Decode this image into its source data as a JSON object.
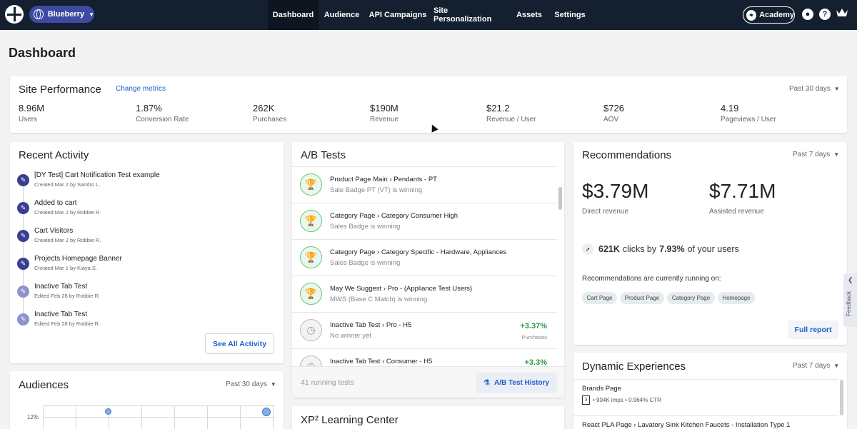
{
  "nav": {
    "site": "Blueberry",
    "tabs": [
      "Dashboard",
      "Audience",
      "API Campaigns",
      "Site Personalization",
      "Assets",
      "Settings"
    ],
    "academy": "Academy"
  },
  "page_title": "Dashboard",
  "site_performance": {
    "title": "Site Performance",
    "change_metrics": "Change metrics",
    "period": "Past 30 days",
    "metrics": [
      {
        "value": "8.96M",
        "label": "Users"
      },
      {
        "value": "1.87%",
        "label": "Conversion Rate"
      },
      {
        "value": "262K",
        "label": "Purchases"
      },
      {
        "value": "$190M",
        "label": "Revenue"
      },
      {
        "value": "$21.2",
        "label": "Revenue / User"
      },
      {
        "value": "$726",
        "label": "AOV"
      },
      {
        "value": "4.19",
        "label": "Pageviews / User"
      }
    ]
  },
  "recent_activity": {
    "title": "Recent Activity",
    "items": [
      {
        "title": "[DY Test] Cart Notification Test example",
        "sub": "Created Mar 2 by Sandro L."
      },
      {
        "title": "Added to cart",
        "sub": "Created Mar 2 by Robbie R."
      },
      {
        "title": "Cart Visitors",
        "sub": "Created Mar 2 by Robbie R."
      },
      {
        "title": "Projects Homepage Banner",
        "sub": "Created Mar 1 by Kiaya S."
      },
      {
        "title": "Inactive Tab Test",
        "sub": "Edited Feb 28 by Robbie R."
      },
      {
        "title": "Inactive Tab Test",
        "sub": "Edited Feb 28 by Robbie R."
      }
    ],
    "see_all": "See All Activity"
  },
  "ab_tests": {
    "title": "A/B Tests",
    "rows": [
      {
        "title": "Product Page Main › Pendants - PT",
        "sub": "Sale Badge PT (VT) is winning"
      },
      {
        "title": "Category Page › Category Consumer High",
        "sub": "Sales Badge is winning"
      },
      {
        "title": "Category Page › Category Specific - Hardware, Appliances",
        "sub": "Sales Badge is winning"
      },
      {
        "title": "May We Suggest › Pro - (Appliance Test Users)",
        "sub": "MWS (Base C Match) is winning"
      },
      {
        "title": "Inactive Tab Test › Pro - H5",
        "sub": "No winner yet",
        "uplift": "+3.37%",
        "uplift_label": "Purchases"
      },
      {
        "title": "Inactive Tab Test › Consumer - H5",
        "uplift": "+3.3%"
      }
    ],
    "running": "41 running tests",
    "history": "A/B Test History"
  },
  "learning_center": {
    "title": "XP² Learning Center"
  },
  "recommendations": {
    "title": "Recommendations",
    "period": "Past 7 days",
    "direct_value": "$3.79M",
    "direct_label": "Direct revenue",
    "assisted_value": "$7.71M",
    "assisted_label": "Assisted revenue",
    "clicks": "621K",
    "clicks_text": "clicks by",
    "clicks_pct": "7.93%",
    "clicks_tail": "of your users",
    "running_on": "Recommendations are currently running on:",
    "pills": [
      "Cart Page",
      "Product Page",
      "Category Page",
      "Homepage"
    ],
    "full_report": "Full report"
  },
  "feedback": "Feedback",
  "dynamic": {
    "title": "Dynamic Experiences",
    "period": "Past 7 days",
    "row1_title": "Brands Page",
    "row1_count": "3",
    "row1_stats": "• 904K imps • 0.964% CTR",
    "row2_title": "React PLA Page › Lavatory Sink Kitchen Faucets - Installation Type 1"
  },
  "audiences": {
    "title": "Audiences",
    "period": "Past 30 days",
    "y_tick": "12%"
  }
}
